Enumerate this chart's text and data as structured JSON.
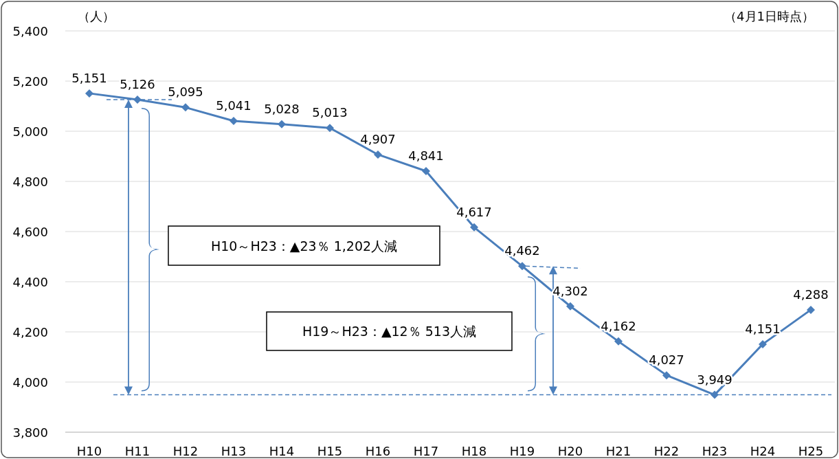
{
  "chart_data": {
    "type": "line",
    "ylabel": "（人）",
    "categories": [
      "H10",
      "H11",
      "H12",
      "H13",
      "H14",
      "H15",
      "H16",
      "H17",
      "H18",
      "H19",
      "H20",
      "H21",
      "H22",
      "H23",
      "H24",
      "H25"
    ],
    "series": [
      {
        "color": "#4a7ebb",
        "values": [
          5151,
          5126,
          5095,
          5041,
          5028,
          5013,
          4907,
          4841,
          4617,
          4462,
          4302,
          4162,
          4027,
          3949,
          4151,
          4288
        ],
        "value_labels": [
          "5,151",
          "5,126",
          "5,095",
          "5,041",
          "5,028",
          "5,013",
          "4,907",
          "4,841",
          "4,617",
          "4,462",
          "4,302",
          "4,162",
          "4,027",
          "3,949",
          "4,151",
          "4,288"
        ]
      }
    ],
    "ylim": [
      3800,
      5400
    ],
    "yticks": [
      {
        "value": 3800,
        "label": "3,800"
      },
      {
        "value": 4000,
        "label": "4,000"
      },
      {
        "value": 4200,
        "label": "4,200"
      },
      {
        "value": 4400,
        "label": "4,400"
      },
      {
        "value": 4600,
        "label": "4,600"
      },
      {
        "value": 4800,
        "label": "4,800"
      },
      {
        "value": 5000,
        "label": "5,000"
      },
      {
        "value": 5200,
        "label": "5,200"
      },
      {
        "value": 5400,
        "label": "5,400"
      }
    ],
    "grid": "y",
    "marker": "diamond",
    "line_style": "solid",
    "ref_lines": [
      {
        "axis": "y",
        "value": 3949,
        "color": "#4a7ebb",
        "line_style": "dashed"
      }
    ],
    "annotations": [
      "（4月1日時点）",
      "H10～H23：▲23％ 1,202人減",
      "H19～H23：▲12％ 513人減"
    ]
  }
}
